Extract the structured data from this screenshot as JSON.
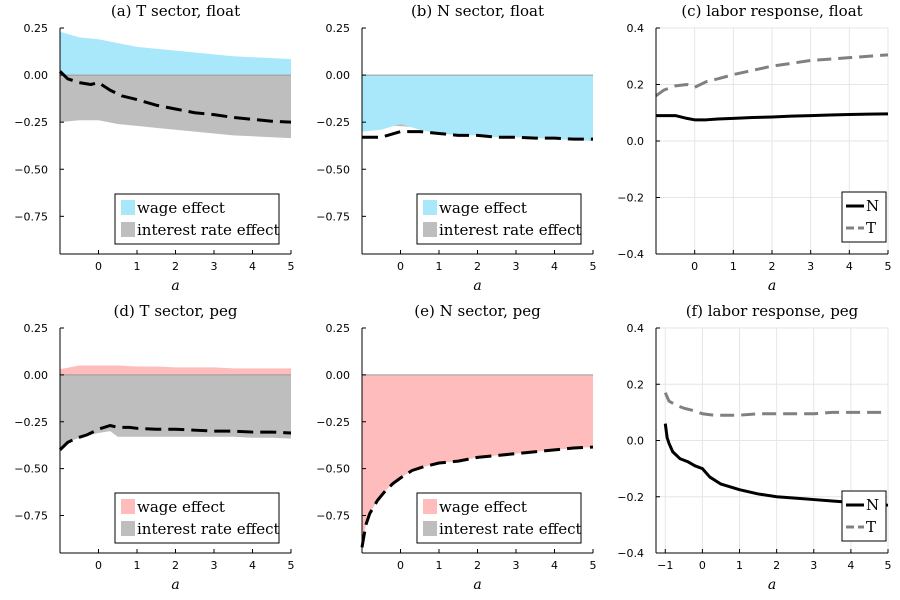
{
  "chart_data": [
    {
      "id": "a",
      "type": "area",
      "title": "(a) T sector,  float",
      "xlabel": "a",
      "xlim": [
        -1,
        5
      ],
      "ylim": [
        -0.95,
        0.25
      ],
      "xticks": [
        0,
        1,
        2,
        3,
        4,
        5
      ],
      "yticks": [
        0.25,
        0.0,
        -0.25,
        -0.5,
        -0.75
      ],
      "ytick_labels": [
        "0.25",
        "0.00",
        "−0.25",
        "−0.50",
        "−0.75"
      ],
      "legend_position": "bottom-right",
      "areas": [
        {
          "name": "wage effect",
          "color": "#a9e7fb",
          "x": [
            -1,
            -0.5,
            0,
            0.5,
            1,
            1.5,
            2,
            2.5,
            3,
            3.5,
            4,
            4.5,
            5
          ],
          "y": [
            0.23,
            0.2,
            0.19,
            0.17,
            0.15,
            0.14,
            0.13,
            0.12,
            0.11,
            0.1,
            0.095,
            0.09,
            0.085
          ]
        },
        {
          "name": "interest rate effect",
          "color": "#bebebe",
          "x": [
            -1,
            -0.5,
            0,
            0.5,
            1,
            1.5,
            2,
            2.5,
            3,
            3.5,
            4,
            4.5,
            5
          ],
          "y": [
            -0.25,
            -0.24,
            -0.24,
            -0.26,
            -0.27,
            -0.28,
            -0.29,
            -0.3,
            -0.31,
            -0.32,
            -0.325,
            -0.33,
            -0.335
          ]
        }
      ],
      "lines": [
        {
          "name": "total",
          "color": "#000000",
          "dash": "16,7",
          "width": 3,
          "x": [
            -1,
            -0.8,
            -0.5,
            -0.2,
            0,
            0.3,
            0.6,
            1,
            1.5,
            2,
            2.5,
            3,
            3.5,
            4,
            4.5,
            5
          ],
          "y": [
            0.02,
            -0.02,
            -0.04,
            -0.05,
            -0.04,
            -0.08,
            -0.11,
            -0.13,
            -0.16,
            -0.18,
            -0.2,
            -0.21,
            -0.225,
            -0.235,
            -0.245,
            -0.25
          ]
        }
      ]
    },
    {
      "id": "b",
      "type": "area",
      "title": "(b) N sector,  float",
      "xlabel": "a",
      "xlim": [
        -1,
        5
      ],
      "ylim": [
        -0.95,
        0.25
      ],
      "xticks": [
        0,
        1,
        2,
        3,
        4,
        5
      ],
      "yticks": [
        0.25,
        0.0,
        -0.25,
        -0.5,
        -0.75
      ],
      "ytick_labels": [
        "0.25",
        "0.00",
        "−0.25",
        "−0.50",
        "−0.75"
      ],
      "legend_position": "bottom-right",
      "areas": [
        {
          "name": "interest rate effect",
          "color": "#bebebe",
          "x": [
            -1,
            5
          ],
          "y": [
            -0.26,
            -0.33
          ]
        },
        {
          "name": "wage effect",
          "color": "#a9e7fb",
          "x": [
            -1,
            -0.5,
            0,
            0.5,
            1,
            1.5,
            2,
            2.5,
            3,
            3.5,
            4,
            4.5,
            5
          ],
          "y": [
            -0.3,
            -0.29,
            -0.26,
            -0.29,
            -0.31,
            -0.32,
            -0.32,
            -0.33,
            -0.33,
            -0.335,
            -0.34,
            -0.345,
            -0.35
          ]
        }
      ],
      "lines": [
        {
          "name": "total",
          "color": "#000000",
          "dash": "16,7",
          "width": 3,
          "x": [
            -1,
            -0.5,
            0,
            0.5,
            1,
            1.5,
            2,
            2.5,
            3,
            3.5,
            4,
            4.5,
            5
          ],
          "y": [
            -0.33,
            -0.33,
            -0.3,
            -0.3,
            -0.31,
            -0.32,
            -0.32,
            -0.33,
            -0.33,
            -0.335,
            -0.335,
            -0.34,
            -0.34
          ]
        }
      ]
    },
    {
      "id": "c",
      "type": "line",
      "title": "(c) labor response,  float",
      "xlabel": "a",
      "xlim": [
        -1,
        5
      ],
      "ylim": [
        -0.4,
        0.4
      ],
      "xticks": [
        0,
        1,
        2,
        3,
        4,
        5
      ],
      "yticks": [
        0.4,
        0.2,
        0.0,
        -0.2,
        -0.4
      ],
      "ytick_labels": [
        "0.4",
        "0.2",
        "0.0",
        "−0.2",
        "−0.4"
      ],
      "grid": true,
      "legend_position": "bottom-right",
      "lines": [
        {
          "name": "N",
          "color": "#000000",
          "dash": "",
          "width": 3,
          "x": [
            -1,
            -0.5,
            -0.2,
            0,
            0.3,
            0.6,
            1,
            1.5,
            2,
            2.5,
            3,
            3.5,
            4,
            4.5,
            5
          ],
          "y": [
            0.09,
            0.09,
            0.08,
            0.075,
            0.075,
            0.078,
            0.08,
            0.083,
            0.085,
            0.088,
            0.09,
            0.092,
            0.094,
            0.095,
            0.096
          ]
        },
        {
          "name": "T",
          "color": "#808080",
          "dash": "14,7",
          "width": 3,
          "x": [
            -1,
            -0.8,
            -0.5,
            -0.2,
            0,
            0.3,
            0.6,
            1,
            1.5,
            2,
            2.5,
            3,
            3.5,
            4,
            4.5,
            5
          ],
          "y": [
            0.16,
            0.18,
            0.195,
            0.2,
            0.19,
            0.21,
            0.22,
            0.235,
            0.25,
            0.265,
            0.275,
            0.285,
            0.29,
            0.295,
            0.3,
            0.305
          ]
        }
      ]
    },
    {
      "id": "d",
      "type": "area",
      "title": "(d) T sector,  peg",
      "xlabel": "a",
      "xlim": [
        -1,
        5
      ],
      "ylim": [
        -0.95,
        0.25
      ],
      "xticks": [
        0,
        1,
        2,
        3,
        4,
        5
      ],
      "yticks": [
        0.25,
        0.0,
        -0.25,
        -0.5,
        -0.75
      ],
      "ytick_labels": [
        "0.25",
        "0.00",
        "−0.25",
        "−0.50",
        "−0.75"
      ],
      "legend_position": "bottom-right",
      "areas": [
        {
          "name": "wage effect",
          "color": "#ffbcbc",
          "x": [
            -1,
            -0.5,
            0,
            0.5,
            1,
            1.5,
            2,
            2.5,
            3,
            3.5,
            4,
            4.5,
            5
          ],
          "y": [
            0.03,
            0.05,
            0.05,
            0.05,
            0.045,
            0.045,
            0.04,
            0.04,
            0.04,
            0.035,
            0.035,
            0.035,
            0.035
          ]
        },
        {
          "name": "interest rate effect",
          "color": "#bebebe",
          "x": [
            -1,
            -0.7,
            -0.4,
            0,
            0.3,
            0.5,
            1,
            1.5,
            2,
            2.5,
            3,
            3.5,
            4,
            4.5,
            5
          ],
          "y": [
            -0.4,
            -0.35,
            -0.33,
            -0.31,
            -0.3,
            -0.33,
            -0.33,
            -0.33,
            -0.33,
            -0.33,
            -0.33,
            -0.33,
            -0.335,
            -0.335,
            -0.34
          ]
        }
      ],
      "lines": [
        {
          "name": "total",
          "color": "#000000",
          "dash": "16,7",
          "width": 3,
          "x": [
            -1,
            -0.8,
            -0.6,
            -0.3,
            0,
            0.3,
            0.5,
            0.8,
            1,
            1.5,
            2,
            2.5,
            3,
            3.5,
            4,
            4.5,
            5
          ],
          "y": [
            -0.4,
            -0.36,
            -0.34,
            -0.32,
            -0.29,
            -0.27,
            -0.28,
            -0.28,
            -0.285,
            -0.29,
            -0.29,
            -0.295,
            -0.3,
            -0.3,
            -0.305,
            -0.305,
            -0.31
          ]
        }
      ]
    },
    {
      "id": "e",
      "type": "area",
      "title": "(e) N sector,  peg",
      "xlabel": "a",
      "xlim": [
        -1,
        5
      ],
      "ylim": [
        -0.95,
        0.25
      ],
      "xticks": [
        0,
        1,
        2,
        3,
        4,
        5
      ],
      "yticks": [
        0.25,
        0.0,
        -0.25,
        -0.5,
        -0.75
      ],
      "ytick_labels": [
        "0.25",
        "0.00",
        "−0.25",
        "−0.50",
        "−0.75"
      ],
      "legend_position": "bottom-right",
      "areas": [
        {
          "name": "interest rate effect",
          "color": "#bebebe",
          "x": [
            -1,
            -0.7,
            -0.4,
            -0.2,
            0,
            0.5,
            1,
            1.5,
            2,
            2.5,
            3,
            3.5,
            4,
            4.5,
            5
          ],
          "y": [
            -0.47,
            -0.43,
            -0.4,
            -0.36,
            -0.34,
            -0.33,
            -0.35,
            -0.34,
            -0.34,
            -0.34,
            -0.34,
            -0.34,
            -0.34,
            -0.335,
            -0.335
          ]
        },
        {
          "name": "wage effect",
          "color": "#ffbcbc",
          "x": [
            -1,
            -0.9,
            -0.8,
            -0.6,
            -0.4,
            -0.2,
            0,
            0.3,
            0.6,
            1,
            1.5,
            2,
            2.5,
            3,
            3.5,
            4,
            4.5,
            5
          ],
          "y": [
            -0.92,
            -0.8,
            -0.74,
            -0.67,
            -0.62,
            -0.58,
            -0.55,
            -0.51,
            -0.49,
            -0.47,
            -0.46,
            -0.44,
            -0.43,
            -0.42,
            -0.41,
            -0.4,
            -0.39,
            -0.385
          ]
        }
      ],
      "lines": [
        {
          "name": "total",
          "color": "#000000",
          "dash": "16,7",
          "width": 3,
          "x": [
            -1,
            -0.9,
            -0.8,
            -0.6,
            -0.4,
            -0.2,
            0,
            0.3,
            0.6,
            1,
            1.5,
            2,
            2.5,
            3,
            3.5,
            4,
            4.5,
            5
          ],
          "y": [
            -0.92,
            -0.8,
            -0.74,
            -0.67,
            -0.62,
            -0.58,
            -0.55,
            -0.51,
            -0.49,
            -0.47,
            -0.46,
            -0.44,
            -0.43,
            -0.42,
            -0.41,
            -0.4,
            -0.39,
            -0.385
          ]
        }
      ]
    },
    {
      "id": "f",
      "type": "line",
      "title": "(f) labor response, peg",
      "xlabel": "a",
      "xlim": [
        -1.25,
        5
      ],
      "ylim": [
        -0.4,
        0.4
      ],
      "xticks": [
        -1,
        0,
        1,
        2,
        3,
        4,
        5
      ],
      "xtick_labels": [
        "−1",
        "0",
        "1",
        "2",
        "3",
        "4",
        "5"
      ],
      "yticks": [
        0.4,
        0.2,
        0.0,
        -0.2,
        -0.4
      ],
      "ytick_labels": [
        "0.4",
        "0.2",
        "0.0",
        "−0.2",
        "−0.4"
      ],
      "grid": true,
      "legend_position": "bottom-right",
      "lines": [
        {
          "name": "N",
          "color": "#000000",
          "dash": "",
          "width": 3,
          "x": [
            -1,
            -0.95,
            -0.9,
            -0.8,
            -0.6,
            -0.4,
            -0.2,
            0,
            0.2,
            0.5,
            1,
            1.5,
            2,
            2.5,
            3,
            3.5,
            4,
            4.5,
            5
          ],
          "y": [
            0.06,
            0.01,
            -0.01,
            -0.04,
            -0.065,
            -0.075,
            -0.09,
            -0.1,
            -0.13,
            -0.155,
            -0.175,
            -0.19,
            -0.2,
            -0.205,
            -0.21,
            -0.215,
            -0.22,
            -0.225,
            -0.23
          ]
        },
        {
          "name": "T",
          "color": "#808080",
          "dash": "14,7",
          "width": 3,
          "x": [
            -1,
            -0.9,
            -0.7,
            -0.5,
            -0.2,
            0,
            0.3,
            0.6,
            1,
            1.5,
            2,
            2.5,
            3,
            3.5,
            4,
            4.5,
            5
          ],
          "y": [
            0.17,
            0.14,
            0.125,
            0.115,
            0.105,
            0.095,
            0.09,
            0.09,
            0.09,
            0.095,
            0.095,
            0.095,
            0.095,
            0.1,
            0.1,
            0.1,
            0.1
          ]
        }
      ]
    }
  ]
}
